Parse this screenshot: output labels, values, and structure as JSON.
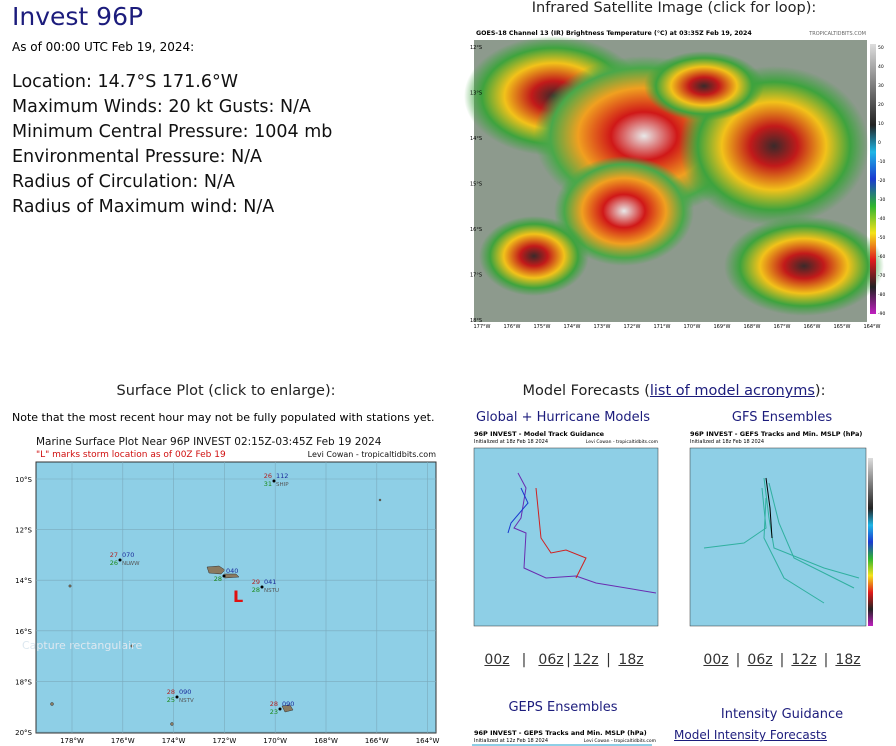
{
  "header": {
    "title": "Invest 96P",
    "as_of": "As of 00:00 UTC Feb 19, 2024:"
  },
  "storm_info": [
    "Location: 14.7°S 171.6°W",
    "Maximum Winds: 20 kt  Gusts: N/A",
    "Minimum Central Pressure: 1004 mb",
    "Environmental Pressure: N/A",
    "Radius of Circulation: N/A",
    "Radius of Maximum wind: N/A"
  ],
  "satellite": {
    "heading": "Infrared Satellite Image (click for loop):",
    "image_title": "GOES-18 Channel 13 (IR) Brightness Temperature (°C) at 03:35Z Feb 19, 2024",
    "credit": "TROPICALTIDBITS.COM",
    "lat_labels": [
      "12°S",
      "13°S",
      "14°S",
      "15°S",
      "16°S",
      "17°S",
      "18°S"
    ],
    "lon_labels": [
      "177°W",
      "176°W",
      "175°W",
      "174°W",
      "173°W",
      "172°W",
      "171°W",
      "170°W",
      "169°W",
      "168°W",
      "167°W",
      "166°W",
      "165°W",
      "164°W"
    ],
    "colorbar_labels": [
      "50",
      "40",
      "30",
      "20",
      "10",
      "0",
      "-10",
      "-20",
      "-30",
      "-40",
      "-50",
      "-60",
      "-70",
      "-80",
      "-90"
    ]
  },
  "surface": {
    "heading": "Surface Plot (click to enlarge):",
    "note": "Note that the most recent hour may not be fully populated with stations yet.",
    "plot_title": "Marine Surface Plot Near 96P INVEST 02:15Z-03:45Z Feb 19 2024",
    "storm_note": "\"L\" marks storm location as of 00Z Feb 19",
    "credit": "Levi Cowan - tropicaltidbits.com",
    "lat_labels": [
      "10°S",
      "12°S",
      "14°S",
      "16°S",
      "18°S",
      "20°S"
    ],
    "lon_labels": [
      "178°W",
      "176°W",
      "174°W",
      "172°W",
      "170°W",
      "168°W",
      "166°W",
      "164°W"
    ],
    "stations": [
      {
        "temp": "26",
        "pressure": "112",
        "dewpoint": "31",
        "id": "SHIP"
      },
      {
        "temp": "27",
        "pressure": "070",
        "dewpoint": "26",
        "id": "NLWW"
      },
      {
        "pressure": "040",
        "dewpoint": "28"
      },
      {
        "temp": "29",
        "pressure": "041",
        "dewpoint": "28",
        "id": "NSTU"
      },
      {
        "temp": "28",
        "pressure": "090",
        "dewpoint": "25",
        "id": "NSTV"
      },
      {
        "temp": "28",
        "pressure": "090",
        "dewpoint": "23"
      }
    ],
    "storm_marker": "L"
  },
  "overlay": "Capture rectangulaire",
  "models": {
    "heading_prefix": "Model Forecasts (",
    "heading_link": "list of model acronyms",
    "heading_suffix": "):",
    "global": {
      "title": "Global + Hurricane Models",
      "image_title": "96P INVEST - Model Track Guidance",
      "image_subtitle": "Initialized at 18z Feb 18 2024",
      "credit": "Levi Cowan - tropicaltidbits.com"
    },
    "gefs": {
      "title": "GFS Ensembles",
      "image_title": "96P INVEST - GEFS Tracks and Min. MSLP (hPa)",
      "image_subtitle": "Initialized at 18z Feb 18 2024"
    },
    "cycles": [
      "00z",
      "06z",
      "12z",
      "18z"
    ],
    "separator": "|",
    "geps": {
      "title": "GEPS Ensembles",
      "image_title": "96P INVEST - GEPS Tracks and Min. MSLP (hPa)",
      "image_subtitle": "Initialized at 12z Feb 18 2024",
      "credit": "Levi Cowan - tropicaltidbits.com"
    },
    "intensity": {
      "title": "Intensity Guidance",
      "link": "Model Intensity Forecasts"
    }
  }
}
